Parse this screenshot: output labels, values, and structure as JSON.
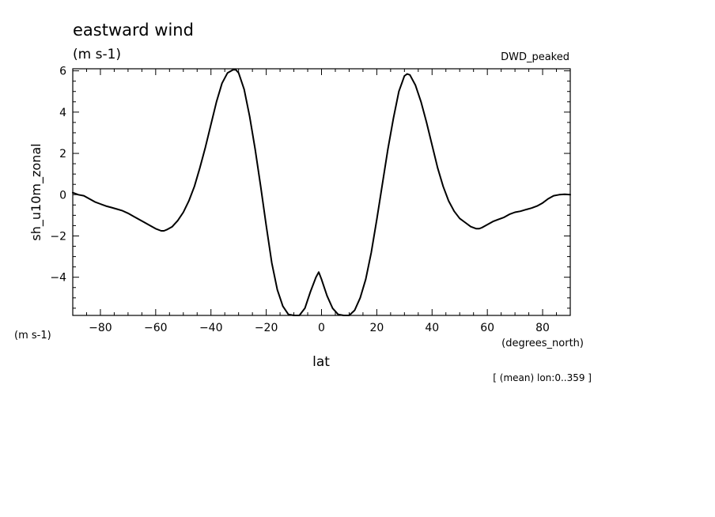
{
  "chart_data": {
    "type": "line",
    "title": "eastward wind",
    "units": "(m s-1)",
    "label_right": "DWD_peaked",
    "ylabel": "sh_u10m_zonal",
    "ylabel_units": "(m s-1)",
    "xlabel": "lat",
    "xlabel_units": "(degrees_north)",
    "footnote": "[ (mean) lon:0..359 ]",
    "xlim": [
      -90,
      90
    ],
    "ylim": [
      -5.85,
      6.1
    ],
    "x_ticks": [
      -80,
      -60,
      -40,
      -20,
      0,
      20,
      40,
      60,
      80
    ],
    "x_tick_labels": [
      "−80",
      "−60",
      "−40",
      "−20",
      "0",
      "20",
      "40",
      "60",
      "80"
    ],
    "y_ticks": [
      -4,
      -2,
      0,
      2,
      4,
      6
    ],
    "y_tick_labels": [
      "−4",
      "−2",
      "0",
      "2",
      "4",
      "6"
    ],
    "grid": false,
    "series": [
      {
        "x": [
          -90,
          -88,
          -86,
          -84,
          -82,
          -80,
          -78,
          -76,
          -74,
          -72,
          -70,
          -68,
          -66,
          -64,
          -62,
          -60,
          -58,
          -57,
          -56,
          -54,
          -52,
          -50,
          -48,
          -46,
          -44,
          -42,
          -40,
          -38,
          -36,
          -34,
          -32,
          -31,
          -30,
          -28,
          -26,
          -24,
          -22,
          -20,
          -18,
          -16,
          -14,
          -12,
          -10,
          -8,
          -6,
          -4,
          -2,
          -1,
          0,
          1,
          2,
          4,
          6,
          8,
          10,
          12,
          14,
          16,
          18,
          20,
          22,
          24,
          26,
          28,
          30,
          31,
          32,
          34,
          36,
          38,
          40,
          42,
          44,
          46,
          48,
          50,
          52,
          54,
          56,
          57,
          58,
          60,
          62,
          64,
          66,
          68,
          70,
          72,
          74,
          76,
          78,
          80,
          82,
          84,
          86,
          88,
          90
        ],
        "y": [
          0.1,
          0.0,
          -0.05,
          -0.2,
          -0.35,
          -0.45,
          -0.55,
          -0.62,
          -0.7,
          -0.78,
          -0.9,
          -1.05,
          -1.2,
          -1.35,
          -1.5,
          -1.65,
          -1.75,
          -1.75,
          -1.7,
          -1.55,
          -1.25,
          -0.85,
          -0.3,
          0.4,
          1.3,
          2.3,
          3.4,
          4.5,
          5.4,
          5.9,
          6.05,
          6.05,
          5.9,
          5.1,
          3.8,
          2.2,
          0.4,
          -1.5,
          -3.3,
          -4.6,
          -5.4,
          -5.8,
          -5.95,
          -5.9,
          -5.5,
          -4.7,
          -4.0,
          -3.75,
          -4.1,
          -4.5,
          -4.9,
          -5.5,
          -5.8,
          -5.9,
          -5.85,
          -5.6,
          -5.0,
          -4.1,
          -2.8,
          -1.2,
          0.5,
          2.2,
          3.7,
          5.0,
          5.75,
          5.85,
          5.8,
          5.3,
          4.5,
          3.5,
          2.4,
          1.3,
          0.4,
          -0.3,
          -0.8,
          -1.15,
          -1.35,
          -1.55,
          -1.65,
          -1.65,
          -1.6,
          -1.45,
          -1.3,
          -1.2,
          -1.1,
          -0.95,
          -0.85,
          -0.8,
          -0.72,
          -0.65,
          -0.55,
          -0.4,
          -0.2,
          -0.05,
          0.0,
          0.02,
          0.0
        ]
      }
    ]
  }
}
